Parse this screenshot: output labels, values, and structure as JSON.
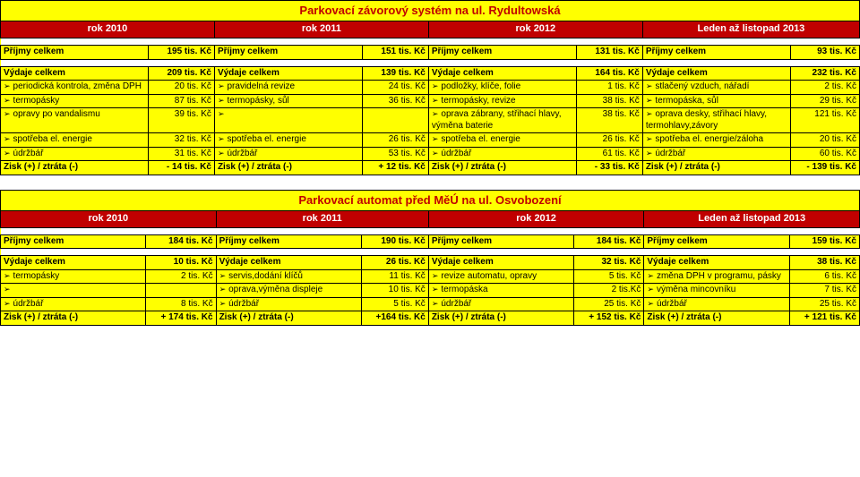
{
  "bullet": "➢",
  "table1": {
    "title": "Parkovací závorový systém na ul. Rydultowská",
    "years": [
      "rok 2010",
      "rok 2011",
      "rok 2012",
      "Leden až listopad 2013"
    ],
    "income_label": "Příjmy celkem",
    "income": [
      "195 tis. Kč",
      "151 tis. Kč",
      "131 tis. Kč",
      "93 tis. Kč"
    ],
    "expense_label": "Výdaje celkem",
    "expense": [
      "209 tis. Kč",
      "139 tis. Kč",
      "164 tis. Kč",
      "232 tis. Kč"
    ],
    "rows": [
      {
        "c1l": "periodická kontrola, změna DPH",
        "c1a": "20 tis. Kč",
        "c2l": "pravidelná revize",
        "c2a": "24 tis. Kč",
        "c3l": "podložky, klíče, folie",
        "c3a": "1 tis. Kč",
        "c4l": "stlačený vzduch, nářadí",
        "c4a": "2 tis. Kč"
      },
      {
        "c1l": "termopásky",
        "c1a": "87 tis. Kč",
        "c2l": "termopásky, sůl",
        "c2a": "36 tis. Kč",
        "c3l": "termopásky, revize",
        "c3a": "38 tis. Kč",
        "c4l": "termopáska, sůl",
        "c4a": "29 tis. Kč"
      },
      {
        "c1l": "opravy po vandalismu",
        "c1a": "39 tis. Kč",
        "c2l": "",
        "c2a": "",
        "c3l": "oprava zábrany, střihací hlavy, výměna baterie",
        "c3a": "38 tis. Kč",
        "c4l": "oprava desky, střihací hlavy, termohlavy,závory",
        "c4a": "121 tis. Kč"
      },
      {
        "c1l": "spotřeba el. energie",
        "c1a": "32 tis. Kč",
        "c2l": "spotřeba el. energie",
        "c2a": "26 tis. Kč",
        "c3l": "spotřeba el. energie",
        "c3a": "26 tis. Kč",
        "c4l": "spotřeba el. energie/záloha",
        "c4a": "20 tis. Kč"
      },
      {
        "c1l": "údržbář",
        "c1a": "31 tis. Kč",
        "c2l": "údržbář",
        "c2a": "53 tis. Kč",
        "c3l": "údržbář",
        "c3a": "61 tis. Kč",
        "c4l": "údržbář",
        "c4a": "60 tis. Kč"
      }
    ],
    "result_label": "Zisk (+) / ztráta (-)",
    "result": [
      "- 14 tis. Kč",
      "+ 12 tis. Kč",
      "- 33 tis. Kč",
      "- 139 tis. Kč"
    ]
  },
  "table2": {
    "title": "Parkovací automat před MěÚ na ul. Osvobození",
    "years": [
      "rok 2010",
      "rok 2011",
      "rok 2012",
      "Leden až listopad 2013"
    ],
    "income_label": "Příjmy celkem",
    "income": [
      "184 tis. Kč",
      "190 tis. Kč",
      "184 tis. Kč",
      "159 tis. Kč"
    ],
    "expense_label": "Výdaje celkem",
    "expense": [
      "10 tis. Kč",
      "26 tis. Kč",
      "32 tis. Kč",
      "38 tis. Kč"
    ],
    "rows": [
      {
        "c1l": "termopásky",
        "c1a": "2 tis. Kč",
        "c2l": "servis,dodání klíčů",
        "c2a": "11 tis. Kč",
        "c3l": "revize automatu, opravy",
        "c3a": "5 tis. Kč",
        "c4l": "změna DPH v programu, pásky",
        "c4a": "6 tis. Kč"
      },
      {
        "c1l": "",
        "c1a": "",
        "c2l": "oprava,výměna displeje",
        "c2a": "10 tis. Kč",
        "c3l": "termopáska",
        "c3a": "2 tis.Kč",
        "c4l": "výměna mincovníku",
        "c4a": "7 tis. Kč"
      },
      {
        "c1l": "údržbář",
        "c1a": "8 tis. Kč",
        "c2l": "údržbář",
        "c2a": "5 tis. Kč",
        "c3l": "údržbář",
        "c3a": "25 tis. Kč",
        "c4l": "údržbář",
        "c4a": "25 tis. Kč"
      }
    ],
    "result_label": "Zisk (+) / ztráta (-)",
    "result": [
      "+ 174 tis. Kč",
      "+164 tis. Kč",
      "+ 152 tis. Kč",
      "+ 121 tis. Kč"
    ]
  }
}
